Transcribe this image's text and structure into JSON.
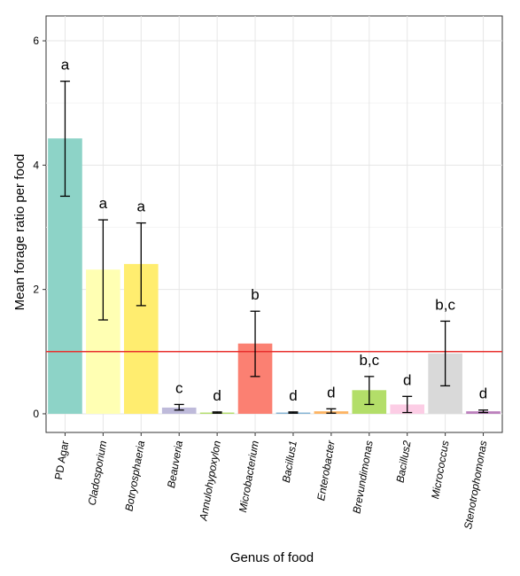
{
  "chart_data": {
    "type": "bar",
    "xlabel": "Genus of food",
    "ylabel": "Mean forage ratio per food",
    "ylim": [
      -0.3,
      6.4
    ],
    "yticks": [
      "0",
      "2",
      "4",
      "6"
    ],
    "reference_line": 1,
    "reference_line_color": "#e8302e",
    "panel_background": "#ffffff",
    "grid": true,
    "categories": [
      "PD Agar",
      "Cladosporium",
      "Botryosphaeria",
      "Beauveria",
      "Annulohypoxylon",
      "Microbacterium",
      "Bacillus1",
      "Enterobacter",
      "Brevundimonas",
      "Bacillus2",
      "Micrococcus",
      "Stenotrophomonas"
    ],
    "italic": [
      false,
      true,
      true,
      true,
      true,
      true,
      true,
      true,
      true,
      true,
      true,
      true
    ],
    "values": [
      4.43,
      2.32,
      2.41,
      0.1,
      0.02,
      1.13,
      0.02,
      0.04,
      0.38,
      0.15,
      0.97,
      0.04
    ],
    "error_low": [
      3.5,
      1.51,
      1.74,
      0.06,
      0.01,
      0.6,
      0.01,
      0.01,
      0.15,
      0.02,
      0.45,
      0.02
    ],
    "error_high": [
      5.35,
      3.12,
      3.07,
      0.15,
      0.03,
      1.65,
      0.03,
      0.08,
      0.6,
      0.28,
      1.49,
      0.06
    ],
    "letters": [
      "a",
      "a",
      "a",
      "c",
      "d",
      "b",
      "d",
      "d",
      "b,c",
      "d",
      "b,c",
      "d"
    ],
    "colors": [
      "#8dd3c7",
      "#ffffb3",
      "#ffed6f",
      "#bebada",
      "#b3de69",
      "#fb8072",
      "#80b1d3",
      "#fdb462",
      "#b3de69",
      "#fccde5",
      "#d9d9d9",
      "#bc80bd"
    ]
  }
}
